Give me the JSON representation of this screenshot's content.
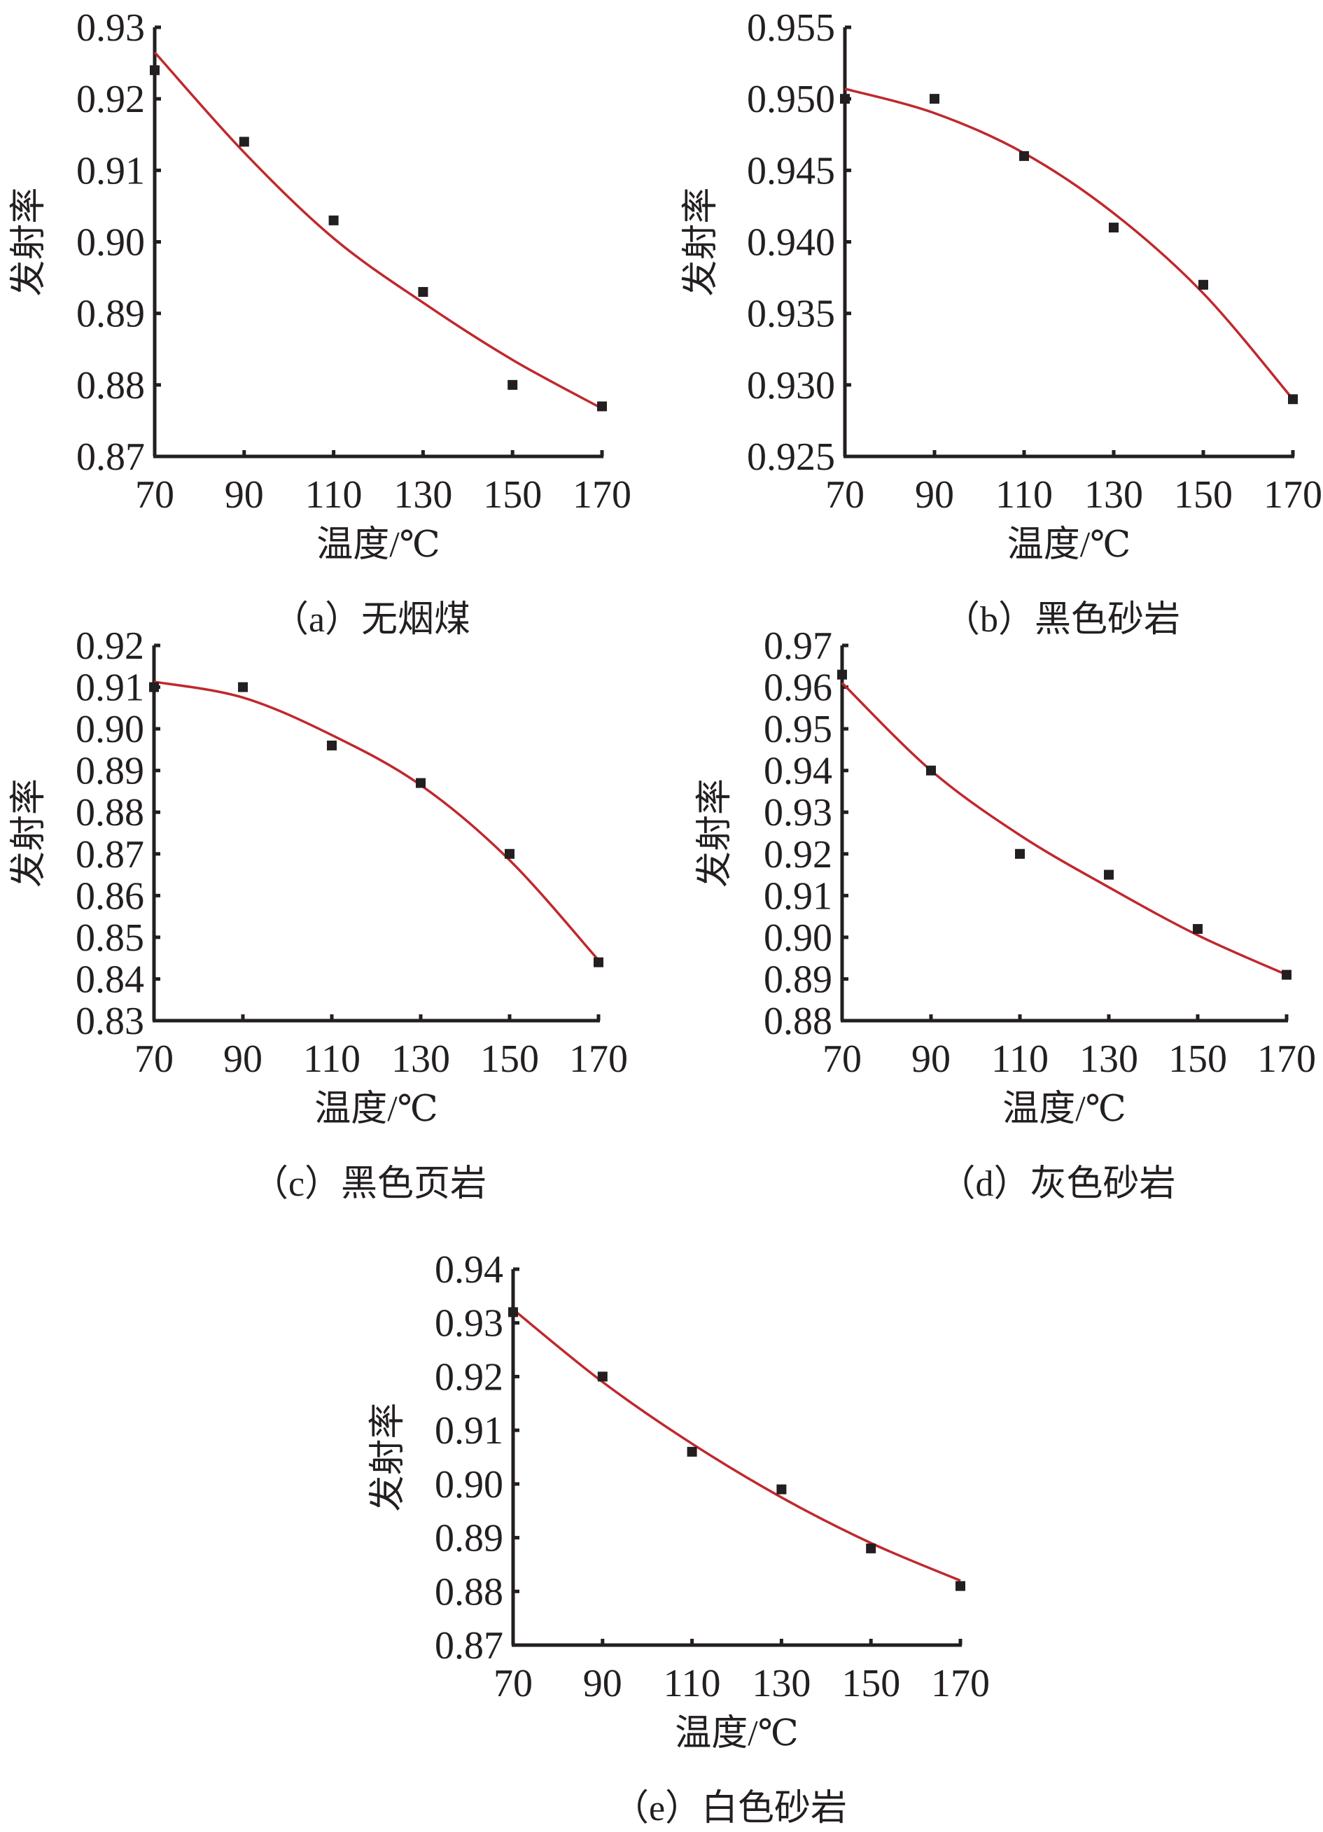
{
  "chart_data": [
    {
      "type": "scatter",
      "title": "（a）无烟煤",
      "xlabel": "温度/℃",
      "ylabel": "发射率",
      "x": [
        70,
        90,
        110,
        130,
        150,
        170
      ],
      "values": [
        0.924,
        0.914,
        0.903,
        0.893,
        0.88,
        0.877
      ],
      "fit": [
        0.9265,
        0.9125,
        0.9005,
        0.8915,
        0.8835,
        0.8767
      ],
      "xlim": [
        70,
        170
      ],
      "ylim": [
        0.87,
        0.93
      ],
      "xticks": [
        "70",
        "90",
        "110",
        "130",
        "150",
        "170"
      ],
      "yticks": [
        "0.87",
        "0.88",
        "0.89",
        "0.90",
        "0.91",
        "0.92",
        "0.93"
      ]
    },
    {
      "type": "scatter",
      "title": "（b）黑色砂岩",
      "xlabel": "温度/℃",
      "ylabel": "发射率",
      "x": [
        70,
        90,
        110,
        130,
        150,
        170
      ],
      "values": [
        0.95,
        0.95,
        0.946,
        0.941,
        0.937,
        0.929
      ],
      "fit": [
        0.9507,
        0.949,
        0.9462,
        0.942,
        0.9364,
        0.929
      ],
      "xlim": [
        70,
        170
      ],
      "ylim": [
        0.925,
        0.955
      ],
      "xticks": [
        "70",
        "90",
        "110",
        "130",
        "150",
        "170"
      ],
      "yticks": [
        "0.925",
        "0.930",
        "0.935",
        "0.940",
        "0.945",
        "0.950",
        "0.955"
      ]
    },
    {
      "type": "scatter",
      "title": "（c）黑色页岩",
      "xlabel": "温度/℃",
      "ylabel": "发射率",
      "x": [
        70,
        90,
        110,
        130,
        150,
        170
      ],
      "values": [
        0.91,
        0.91,
        0.896,
        0.887,
        0.87,
        0.844
      ],
      "fit": [
        0.9113,
        0.9075,
        0.8985,
        0.8865,
        0.8685,
        0.8445
      ],
      "xlim": [
        70,
        170
      ],
      "ylim": [
        0.83,
        0.92
      ],
      "xticks": [
        "70",
        "90",
        "110",
        "130",
        "150",
        "170"
      ],
      "yticks": [
        "0.83",
        "0.84",
        "0.85",
        "0.86",
        "0.87",
        "0.88",
        "0.89",
        "0.90",
        "0.91",
        "0.92"
      ]
    },
    {
      "type": "scatter",
      "title": "（d）灰色砂岩",
      "xlabel": "温度/℃",
      "ylabel": "发射率",
      "x": [
        70,
        90,
        110,
        130,
        150,
        170
      ],
      "values": [
        0.963,
        0.94,
        0.92,
        0.915,
        0.902,
        0.891
      ],
      "fit": [
        0.961,
        0.94,
        0.9245,
        0.912,
        0.9005,
        0.891
      ],
      "xlim": [
        70,
        170
      ],
      "ylim": [
        0.88,
        0.97
      ],
      "xticks": [
        "70",
        "90",
        "110",
        "130",
        "150",
        "170"
      ],
      "yticks": [
        "0.88",
        "0.89",
        "0.90",
        "0.91",
        "0.92",
        "0.93",
        "0.94",
        "0.95",
        "0.96",
        "0.97"
      ]
    },
    {
      "type": "scatter",
      "title": "（e）白色砂岩",
      "xlabel": "温度/℃",
      "ylabel": "发射率",
      "x": [
        70,
        90,
        110,
        130,
        150,
        170
      ],
      "values": [
        0.932,
        0.92,
        0.906,
        0.899,
        0.888,
        0.881
      ],
      "fit": [
        0.9325,
        0.919,
        0.9075,
        0.8975,
        0.889,
        0.882
      ],
      "xlim": [
        70,
        170
      ],
      "ylim": [
        0.87,
        0.94
      ],
      "xticks": [
        "70",
        "90",
        "110",
        "130",
        "150",
        "170"
      ],
      "yticks": [
        "0.87",
        "0.88",
        "0.89",
        "0.90",
        "0.91",
        "0.92",
        "0.93",
        "0.94"
      ]
    }
  ],
  "colors": {
    "fit_line": "#c0282d",
    "marker": "#231f20",
    "axis": "#231f20"
  }
}
